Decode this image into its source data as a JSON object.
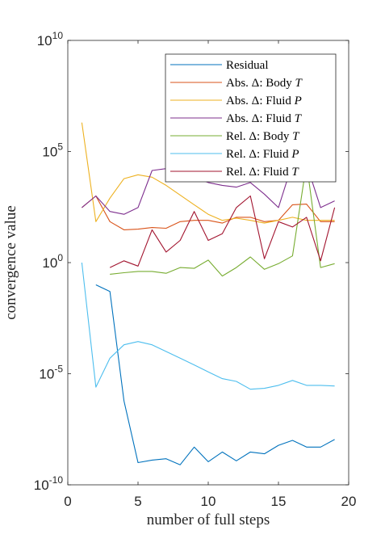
{
  "chart_data": {
    "type": "line",
    "xlabel": "number of full steps",
    "ylabel": "convergence value",
    "xlim": [
      0,
      20
    ],
    "ylim": [
      1e-10,
      10000000000.0
    ],
    "yscale": "log",
    "xticks": [
      "0",
      "5",
      "10",
      "15",
      "20"
    ],
    "yticks": [
      {
        "base": "10",
        "exp": "10"
      },
      {
        "base": "10",
        "exp": "5"
      },
      {
        "base": "10",
        "exp": "0"
      },
      {
        "base": "10",
        "exp": "-5"
      },
      {
        "base": "10",
        "exp": "-10"
      }
    ],
    "grid": false,
    "legend_position": "top-right",
    "series": [
      {
        "name": "Residual",
        "color": "#0072BD",
        "x": [
          2,
          3,
          4,
          5,
          6,
          7,
          8,
          9,
          10,
          11,
          12,
          13,
          14,
          15,
          16,
          17,
          18,
          19
        ],
        "y": [
          0.1,
          0.05,
          6e-07,
          1e-09,
          1.3e-09,
          1.5e-09,
          8e-10,
          5e-09,
          1.1e-09,
          3e-09,
          1.2e-09,
          3e-09,
          2.5e-09,
          6e-09,
          1e-08,
          5e-09,
          5e-09,
          1.1e-08
        ]
      },
      {
        "name": "Abs. Δ: Body T",
        "color": "#D95319",
        "x": [
          1,
          2,
          3,
          4,
          5,
          6,
          7,
          8,
          9,
          10,
          11,
          12,
          13,
          14,
          15,
          16,
          17,
          18,
          19
        ],
        "y": [
          300,
          1000,
          70,
          30,
          32,
          38,
          35,
          70,
          80,
          80,
          60,
          110,
          110,
          70,
          80,
          400,
          430,
          70,
          70
        ]
      },
      {
        "name": "Abs. Δ: Fluid P",
        "color": "#EDB120",
        "x": [
          1,
          2,
          3,
          4,
          5,
          6,
          7,
          8,
          9,
          10,
          11,
          12,
          13,
          14,
          15,
          16,
          17,
          18,
          19
        ],
        "y": [
          2000000.0,
          70,
          800,
          6000,
          9000,
          7000,
          3000,
          1100,
          400,
          150,
          80,
          100,
          80,
          60,
          80,
          110,
          80,
          80,
          80
        ]
      },
      {
        "name": "Abs. Δ: Fluid T",
        "color": "#7E2F8E",
        "x": [
          1,
          2,
          3,
          4,
          5,
          6,
          7,
          8,
          9,
          10,
          11,
          12,
          13,
          14,
          15,
          16,
          17,
          18,
          19
        ],
        "y": [
          300,
          1000,
          200,
          150,
          300,
          14000,
          17000,
          8000,
          7000,
          4000,
          3000,
          2500,
          4000,
          1200,
          300,
          30000,
          27000,
          300,
          600
        ]
      },
      {
        "name": "Rel. Δ: Body T",
        "color": "#77AC30",
        "x": [
          3,
          4,
          5,
          6,
          7,
          8,
          9,
          10,
          11,
          12,
          13,
          14,
          15,
          16,
          17,
          18,
          19
        ],
        "y": [
          0.3,
          0.35,
          0.4,
          0.4,
          0.33,
          0.6,
          0.55,
          1.3,
          0.25,
          0.6,
          1.8,
          0.5,
          0.9,
          2,
          30000,
          0.6,
          0.9
        ]
      },
      {
        "name": "Rel. Δ: Fluid P",
        "color": "#4DBEEE",
        "x": [
          1,
          2,
          3,
          4,
          5,
          6,
          7,
          8,
          9,
          10,
          11,
          12,
          13,
          14,
          15,
          16,
          17,
          18,
          19
        ],
        "y": [
          1.0,
          2.5e-06,
          5e-05,
          0.0002,
          0.00028,
          0.0002,
          0.0001,
          5e-05,
          2.5e-05,
          1.2e-05,
          6e-06,
          4.5e-06,
          2e-06,
          2.2e-06,
          3e-06,
          5e-06,
          3e-06,
          3e-06,
          2.8e-06
        ]
      },
      {
        "name": "Rel. Δ: Fluid T",
        "color": "#A2142F",
        "x": [
          3,
          4,
          5,
          6,
          7,
          8,
          9,
          10,
          11,
          12,
          13,
          14,
          15,
          16,
          17,
          18,
          19
        ],
        "y": [
          0.6,
          1.2,
          0.7,
          30,
          3,
          10,
          200,
          10,
          20,
          300,
          1000,
          1.5,
          70,
          40,
          110,
          1.2,
          300
        ]
      }
    ]
  }
}
